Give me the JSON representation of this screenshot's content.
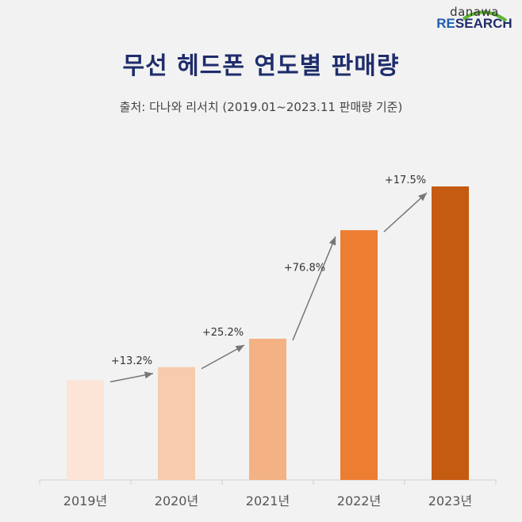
{
  "logo": {
    "top": "danawa",
    "bottom_re": "RE",
    "bottom_rest": "SEARCH"
  },
  "chart_data": {
    "type": "bar",
    "title": "무선 헤드폰 연도별 판매량",
    "subtitle": "출처: 다나와 리서치 (2019.01~2023.11 판매량 기준)",
    "categories": [
      "2019년",
      "2020년",
      "2021년",
      "2022년",
      "2023년"
    ],
    "values": [
      100,
      113.2,
      141.7,
      250.6,
      294.5
    ],
    "value_unit": "index (2019=100, derived from growth labels)",
    "growth_labels": [
      "+13.2%",
      "+25.2%",
      "+76.8%",
      "+17.5%"
    ],
    "colors": [
      "#fce4d6",
      "#f8cbad",
      "#f4b183",
      "#ed7d31",
      "#c55a11"
    ],
    "ylim": [
      0,
      300
    ],
    "grid": false,
    "xlabel": "",
    "ylabel": ""
  }
}
